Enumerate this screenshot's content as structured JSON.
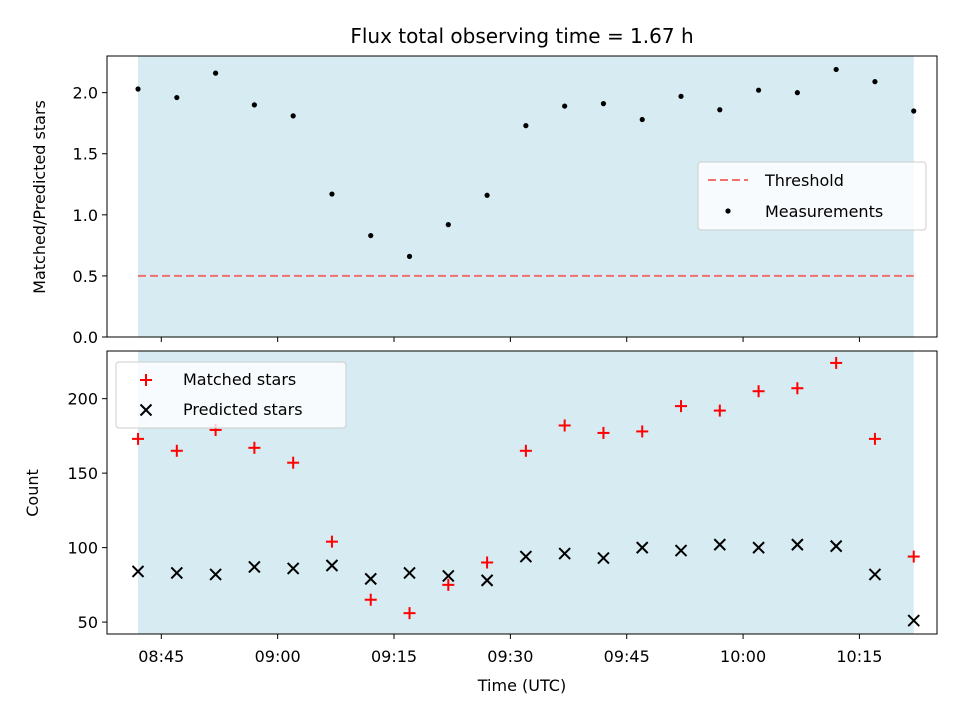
{
  "chart_data": [
    {
      "type": "scatter",
      "title": "Flux total observing time = 1.67 h",
      "xlabel": "",
      "ylabel": "Matched/Predicted stars",
      "ylim": [
        0,
        2.3
      ],
      "y_ticks": [
        "0.0",
        "0.5",
        "1.0",
        "1.5",
        "2.0"
      ],
      "grid": false,
      "legend_position": "center-right",
      "threshold": {
        "label": "Threshold",
        "value": 0.5,
        "color": "#f07070",
        "style": "dashed"
      },
      "series": [
        {
          "name": "Measurements",
          "color": "#000000",
          "marker": "dot",
          "x": [
            "08:42",
            "08:47",
            "08:52",
            "08:57",
            "09:02",
            "09:07",
            "09:12",
            "09:17",
            "09:22",
            "09:27",
            "09:32",
            "09:37",
            "09:42",
            "09:47",
            "09:52",
            "09:57",
            "10:02",
            "10:07",
            "10:12",
            "10:17",
            "10:22"
          ],
          "y": [
            2.03,
            1.96,
            2.16,
            1.9,
            1.81,
            1.17,
            0.83,
            0.66,
            0.92,
            1.16,
            1.73,
            1.89,
            1.91,
            1.78,
            1.97,
            1.86,
            2.02,
            2.0,
            2.19,
            2.09,
            1.85
          ]
        }
      ]
    },
    {
      "type": "scatter",
      "xlabel": "Time (UTC)",
      "ylabel": "Count",
      "ylim": [
        42,
        232
      ],
      "y_ticks": [
        "50",
        "100",
        "150",
        "200"
      ],
      "x_ticks": [
        "08:45",
        "09:00",
        "09:15",
        "09:30",
        "09:45",
        "10:00",
        "10:15"
      ],
      "grid": false,
      "legend_position": "top-left",
      "series": [
        {
          "name": "Matched stars",
          "color": "#ff0000",
          "marker": "plus",
          "x": [
            "08:42",
            "08:47",
            "08:52",
            "08:57",
            "09:02",
            "09:07",
            "09:12",
            "09:17",
            "09:22",
            "09:27",
            "09:32",
            "09:37",
            "09:42",
            "09:47",
            "09:52",
            "09:57",
            "10:02",
            "10:07",
            "10:12",
            "10:17",
            "10:22"
          ],
          "y": [
            173,
            165,
            179,
            167,
            157,
            104,
            65,
            56,
            75,
            90,
            165,
            182,
            177,
            178,
            195,
            192,
            205,
            207,
            224,
            173,
            94
          ]
        },
        {
          "name": "Predicted stars",
          "color": "#000000",
          "marker": "x",
          "x": [
            "08:42",
            "08:47",
            "08:52",
            "08:57",
            "09:02",
            "09:07",
            "09:12",
            "09:17",
            "09:22",
            "09:27",
            "09:32",
            "09:37",
            "09:42",
            "09:47",
            "09:52",
            "09:57",
            "10:02",
            "10:07",
            "10:12",
            "10:17",
            "10:22"
          ],
          "y": [
            84,
            83,
            82,
            87,
            86,
            88,
            79,
            83,
            81,
            78,
            94,
            96,
            93,
            100,
            98,
            102,
            100,
            102,
            101,
            82,
            51
          ]
        }
      ]
    }
  ],
  "shading": {
    "start": "08:42",
    "end": "10:22",
    "color": "#add8e6"
  },
  "x_range": [
    "08:38",
    "10:25"
  ]
}
